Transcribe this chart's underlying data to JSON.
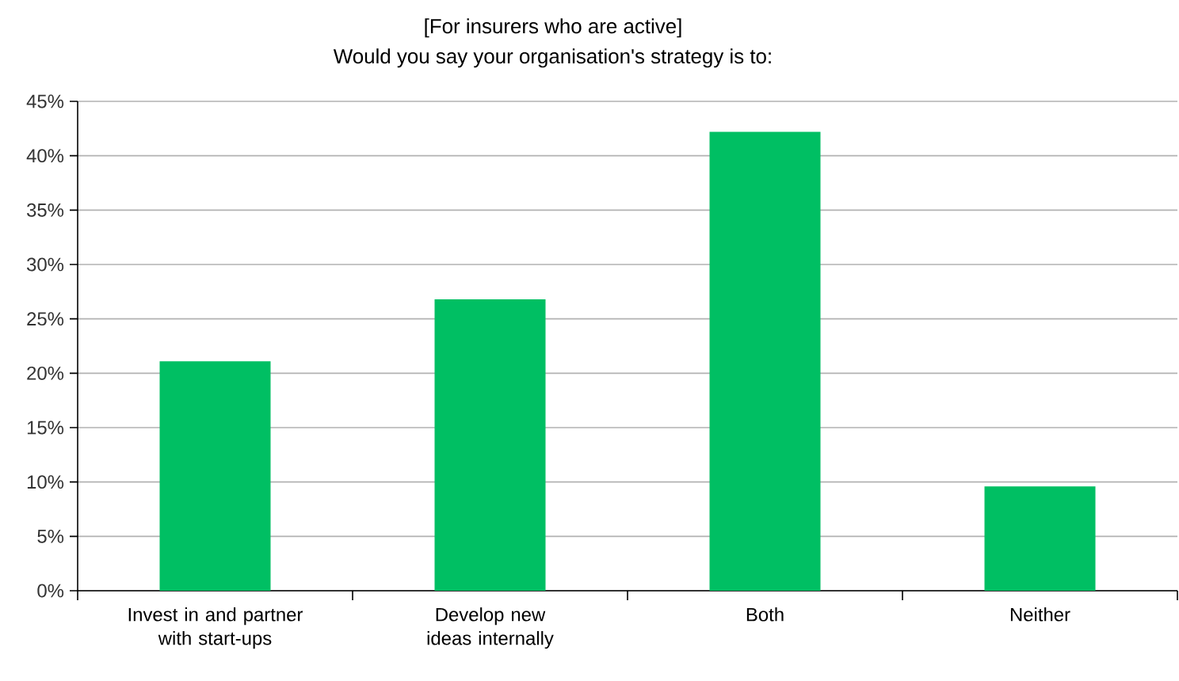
{
  "chart_data": {
    "type": "bar",
    "title": "[For insurers who are active]",
    "subtitle": "Would you say your organisation's strategy is to:",
    "categories": [
      "Invest in and partner with start-ups",
      "Develop new ideas internally",
      "Both",
      "Neither"
    ],
    "values": [
      21.1,
      26.8,
      42.2,
      9.6
    ],
    "color": "#00bf63",
    "ylim": [
      0,
      45
    ],
    "yticks": [
      {
        "value": 0,
        "label": "0%"
      },
      {
        "value": 5,
        "label": "5%"
      },
      {
        "value": 10,
        "label": "10%"
      },
      {
        "value": 15,
        "label": "15%"
      },
      {
        "value": 20,
        "label": "20%"
      },
      {
        "value": 25,
        "label": "25%"
      },
      {
        "value": 30,
        "label": "30%"
      },
      {
        "value": 35,
        "label": "35%"
      },
      {
        "value": 40,
        "label": "40%"
      },
      {
        "value": 45,
        "label": "45%"
      }
    ],
    "grid": "y"
  }
}
